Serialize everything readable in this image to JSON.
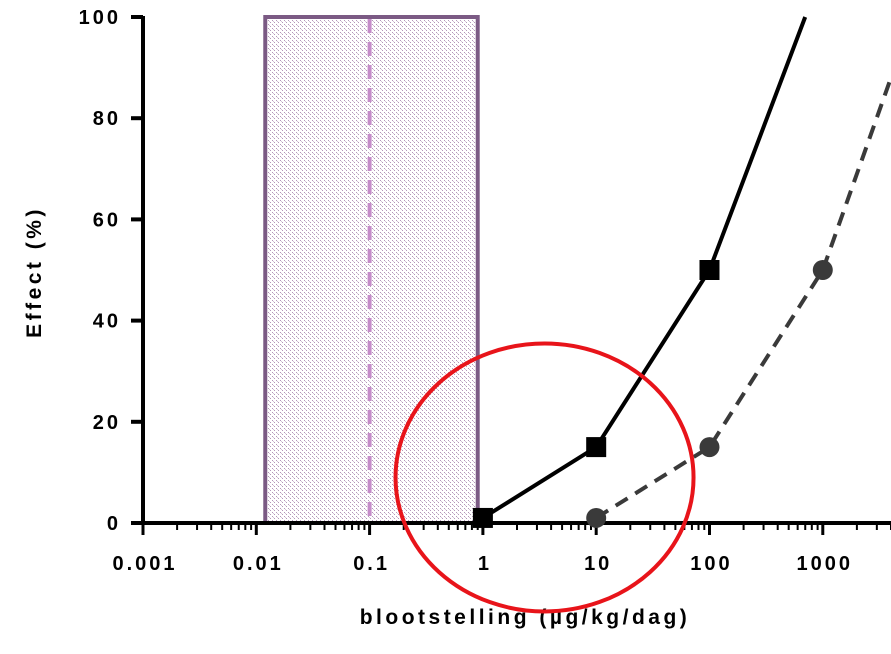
{
  "chart_data": {
    "type": "line",
    "xscale": "log",
    "xlim": [
      0.001,
      4000
    ],
    "ylim": [
      0,
      100
    ],
    "xticks": [
      {
        "value": 0.001,
        "label": "0.001"
      },
      {
        "value": 0.01,
        "label": "0.01"
      },
      {
        "value": 0.1,
        "label": "0.1"
      },
      {
        "value": 1,
        "label": "1"
      },
      {
        "value": 10,
        "label": "10"
      },
      {
        "value": 100,
        "label": "100"
      },
      {
        "value": 1000,
        "label": "1000"
      }
    ],
    "yticks": [
      {
        "value": 0,
        "label": "0"
      },
      {
        "value": 20,
        "label": "20"
      },
      {
        "value": 40,
        "label": "40"
      },
      {
        "value": 60,
        "label": "60"
      },
      {
        "value": 80,
        "label": "80"
      },
      {
        "value": 100,
        "label": "100"
      }
    ],
    "xlabel": "blootstelling (µg/kg/dag)",
    "ylabel": "Effect (%)",
    "grid": false,
    "legend": "none",
    "series": [
      {
        "marker": "square",
        "line_style": "solid",
        "color": "#000000",
        "x": [
          1,
          10,
          100
        ],
        "y": [
          1,
          15,
          50
        ],
        "line_extends_to": {
          "x": 700,
          "y": 100
        }
      },
      {
        "marker": "circle",
        "line_style": "dashed",
        "color": "#3a3a3a",
        "x": [
          10,
          100,
          1000
        ],
        "y": [
          1,
          15,
          50
        ],
        "line_extends_to": {
          "x": 4000,
          "y": 88
        }
      }
    ],
    "annotations": [
      {
        "kind": "shaded-range",
        "x_range": [
          0.012,
          0.9
        ],
        "y_range": [
          0,
          100
        ],
        "border_color": "#7b5a84",
        "fill_color": "#b497b9"
      },
      {
        "kind": "vertical-dashed-line",
        "x": 0.1,
        "color": "#c58bc9"
      },
      {
        "kind": "ellipse-highlight",
        "center": {
          "x": 3.5,
          "y": 9
        },
        "color": "#e8141a"
      }
    ]
  }
}
